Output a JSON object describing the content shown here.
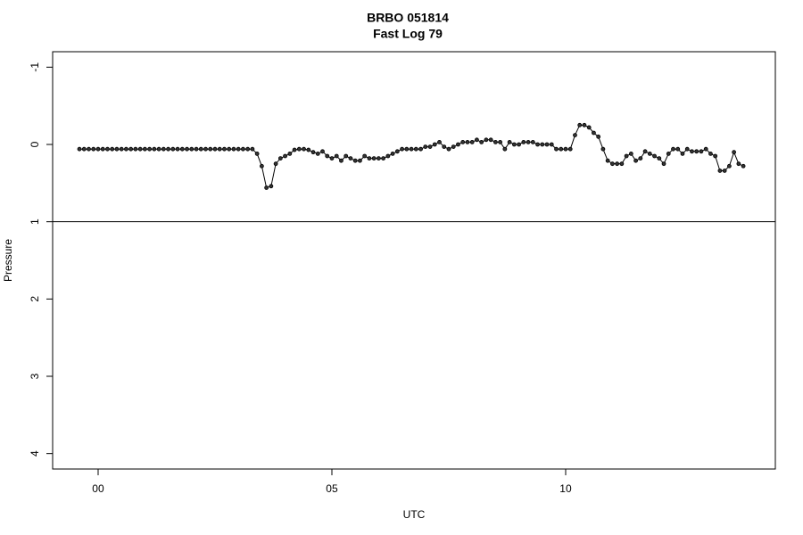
{
  "chart_data": {
    "type": "line",
    "title": "BRBO 051814",
    "subtitle": "Fast Log 79",
    "xlabel": "UTC",
    "ylabel": "Pressure",
    "xlim": [
      -0.973,
      14.485
    ],
    "xticks": [
      {
        "value": 0,
        "label": "00"
      },
      {
        "value": 5,
        "label": "05"
      },
      {
        "value": 10,
        "label": "10"
      }
    ],
    "ylim": [
      4.2,
      -1.2
    ],
    "yticks": [
      -1,
      0,
      1,
      2,
      3,
      4
    ],
    "hline": 1,
    "color": "#000000",
    "markers": true,
    "x": [
      -0.4,
      -0.3,
      -0.2,
      -0.1,
      0,
      0.1,
      0.2,
      0.3,
      0.4,
      0.5,
      0.6,
      0.7,
      0.8,
      0.9,
      1,
      1.1,
      1.2,
      1.3,
      1.4,
      1.5,
      1.6,
      1.7,
      1.8,
      1.9,
      2,
      2.1,
      2.2,
      2.3,
      2.4,
      2.5,
      2.6,
      2.7,
      2.8,
      2.9,
      3,
      3.1,
      3.2,
      3.3,
      3.4,
      3.5,
      3.6,
      3.7,
      3.8,
      3.9,
      4,
      4.1,
      4.2,
      4.3,
      4.4,
      4.5,
      4.6,
      4.7,
      4.8,
      4.9,
      5,
      5.1,
      5.2,
      5.3,
      5.4,
      5.5,
      5.6,
      5.7,
      5.8,
      5.9,
      6,
      6.1,
      6.2,
      6.3,
      6.4,
      6.5,
      6.6,
      6.7,
      6.8,
      6.9,
      7,
      7.1,
      7.2,
      7.3,
      7.4,
      7.5,
      7.6,
      7.7,
      7.8,
      7.9,
      8,
      8.1,
      8.2,
      8.3,
      8.4,
      8.5,
      8.6,
      8.7,
      8.8,
      8.9,
      9,
      9.1,
      9.2,
      9.3,
      9.4,
      9.5,
      9.6,
      9.7,
      9.8,
      9.9,
      10,
      10.1,
      10.2,
      10.3,
      10.4,
      10.5,
      10.6,
      10.7,
      10.8,
      10.9,
      11,
      11.1,
      11.2,
      11.3,
      11.4,
      11.5,
      11.6,
      11.7,
      11.8,
      11.9,
      12,
      12.1,
      12.2,
      12.3,
      12.4,
      12.5,
      12.6,
      12.7,
      12.8,
      12.9,
      13,
      13.1,
      13.2,
      13.3,
      13.4,
      13.5,
      13.6,
      13.7,
      13.8
    ],
    "values": [
      0.06,
      0.06,
      0.06,
      0.06,
      0.06,
      0.06,
      0.06,
      0.06,
      0.06,
      0.06,
      0.06,
      0.06,
      0.06,
      0.06,
      0.06,
      0.06,
      0.06,
      0.06,
      0.06,
      0.06,
      0.06,
      0.06,
      0.06,
      0.06,
      0.06,
      0.06,
      0.06,
      0.06,
      0.06,
      0.06,
      0.06,
      0.06,
      0.06,
      0.06,
      0.06,
      0.06,
      0.06,
      0.06,
      0.12,
      0.28,
      0.56,
      0.54,
      0.25,
      0.18,
      0.15,
      0.12,
      0.07,
      0.06,
      0.06,
      0.07,
      0.1,
      0.12,
      0.09,
      0.15,
      0.18,
      0.15,
      0.21,
      0.15,
      0.18,
      0.21,
      0.21,
      0.15,
      0.18,
      0.18,
      0.18,
      0.18,
      0.15,
      0.12,
      0.09,
      0.06,
      0.06,
      0.06,
      0.06,
      0.06,
      0.03,
      0.03,
      0,
      -0.03,
      0.03,
      0.06,
      0.03,
      0,
      -0.03,
      -0.03,
      -0.03,
      -0.06,
      -0.03,
      -0.06,
      -0.06,
      -0.03,
      -0.03,
      0.06,
      -0.03,
      0,
      0,
      -0.03,
      -0.03,
      -0.03,
      0,
      0,
      0,
      0,
      0.06,
      0.06,
      0.06,
      0.06,
      -0.12,
      -0.25,
      -0.25,
      -0.22,
      -0.15,
      -0.1,
      0.06,
      0.21,
      0.25,
      0.25,
      0.25,
      0.15,
      0.12,
      0.21,
      0.18,
      0.09,
      0.12,
      0.15,
      0.18,
      0.25,
      0.12,
      0.06,
      0.06,
      0.12,
      0.06,
      0.09,
      0.09,
      0.09,
      0.06,
      0.12,
      0.15,
      0.34,
      0.34,
      0.28,
      0.1,
      0.25,
      0.28
    ]
  }
}
